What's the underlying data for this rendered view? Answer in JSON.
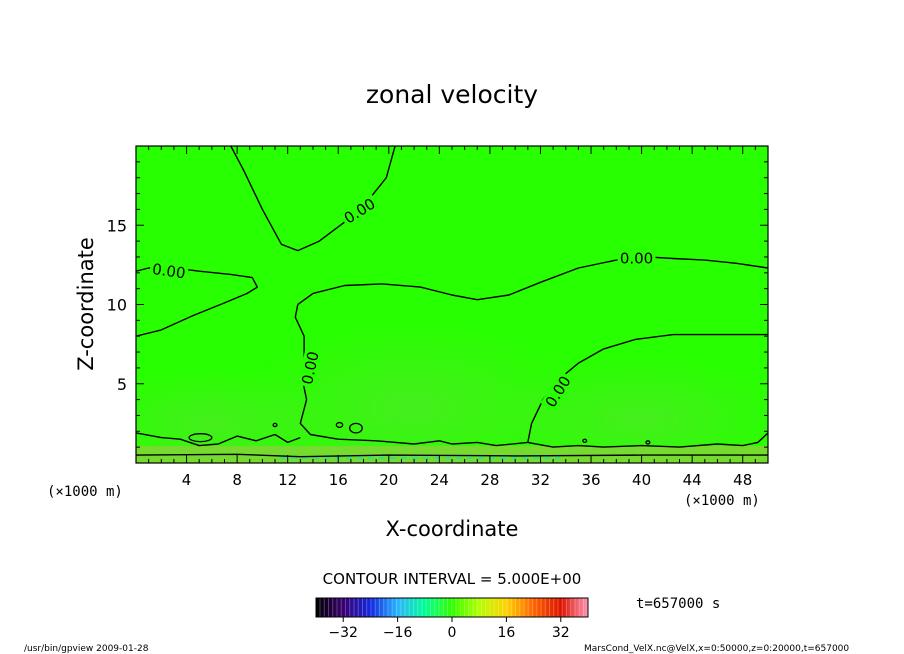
{
  "chart_data": {
    "type": "heatmap",
    "title": "zonal velocity",
    "xlabel": "X-coordinate",
    "ylabel": "Z-coordinate",
    "x_unit": "(×1000 m)",
    "y_unit": "(×1000 m)",
    "xlim": [
      0,
      50
    ],
    "ylim": [
      0,
      20
    ],
    "xticks": [
      4,
      8,
      12,
      16,
      20,
      24,
      28,
      32,
      36,
      40,
      44,
      48
    ],
    "yticks": [
      5,
      10,
      15
    ],
    "contour_interval_text": "CONTOUR INTERVAL = 5.000E+00",
    "time_text": "t=657000 s",
    "colorbar": {
      "range": [
        -40,
        40
      ],
      "tick_values": [
        -32,
        -16,
        0,
        16,
        32
      ],
      "stops": [
        "#000000",
        "#3a0070",
        "#1428e0",
        "#28b4ff",
        "#00ff96",
        "#32ff00",
        "#b4ff00",
        "#ffd200",
        "#ff6400",
        "#dc1400",
        "#ff96b4"
      ]
    },
    "field_colors": {
      "main": "#28ff00",
      "lower_glow": "#50e828",
      "surface_band": "#8cd03c",
      "surface_line": "#28e0a0"
    },
    "contour_labels": [
      "0.00",
      "0.00",
      "0.00",
      "0.00",
      "0.00"
    ],
    "zero_contours": [
      {
        "name": "upper-left-dome",
        "points": [
          [
            7.5,
            20
          ],
          [
            8.5,
            18.5
          ],
          [
            10,
            16
          ],
          [
            11.5,
            13.8
          ],
          [
            12.8,
            13.4
          ],
          [
            14.5,
            14
          ],
          [
            16.5,
            15.2
          ],
          [
            18.5,
            16.7
          ],
          [
            19.8,
            18
          ],
          [
            20.5,
            20
          ]
        ]
      },
      {
        "name": "left-shelf",
        "points": [
          [
            0,
            8
          ],
          [
            2,
            8.4
          ],
          [
            4.5,
            9.3
          ],
          [
            7,
            10.1
          ],
          [
            8.8,
            10.7
          ],
          [
            9.6,
            11.1
          ],
          [
            9.2,
            11.7
          ],
          [
            7.5,
            11.9
          ],
          [
            5,
            12.1
          ],
          [
            3,
            12.3
          ],
          [
            1,
            12.3
          ],
          [
            0,
            12.1
          ]
        ]
      },
      {
        "name": "central-lobe",
        "points": [
          [
            12.8,
            10
          ],
          [
            14,
            10.7
          ],
          [
            16.5,
            11.2
          ],
          [
            19.5,
            11.3
          ],
          [
            22.5,
            11.1
          ],
          [
            25,
            10.6
          ],
          [
            27,
            10.3
          ],
          [
            29.5,
            10.6
          ],
          [
            32,
            11.4
          ],
          [
            35,
            12.3
          ],
          [
            38,
            12.8
          ],
          [
            40.5,
            13
          ],
          [
            42.5,
            12.9
          ],
          [
            45,
            12.8
          ],
          [
            47.5,
            12.6
          ],
          [
            50,
            12.3
          ]
        ]
      },
      {
        "name": "central-left-edge",
        "points": [
          [
            12.8,
            10
          ],
          [
            12.6,
            9.2
          ],
          [
            13.3,
            8
          ],
          [
            13.3,
            6.5
          ],
          [
            13.1,
            5.5
          ],
          [
            13.5,
            4
          ],
          [
            13,
            2.5
          ],
          [
            13.8,
            1.8
          ],
          [
            16,
            1.5
          ],
          [
            19,
            1.4
          ],
          [
            22,
            1.2
          ],
          [
            24,
            1.4
          ],
          [
            25,
            1.2
          ],
          [
            27,
            1.3
          ],
          [
            28.5,
            1.1
          ],
          [
            31,
            1.3
          ]
        ]
      },
      {
        "name": "right-curve",
        "points": [
          [
            31,
            1.3
          ],
          [
            31.3,
            2.5
          ],
          [
            32.2,
            4
          ],
          [
            33.5,
            5.3
          ],
          [
            35,
            6.3
          ],
          [
            37,
            7.2
          ],
          [
            39.5,
            7.8
          ],
          [
            42.5,
            8.1
          ],
          [
            46,
            8.1
          ],
          [
            50,
            8.1
          ]
        ]
      },
      {
        "name": "left-surface",
        "points": [
          [
            0,
            1.9
          ],
          [
            2,
            1.6
          ],
          [
            3.5,
            1.5
          ],
          [
            5,
            1.1
          ],
          [
            6.5,
            1.2
          ],
          [
            8,
            1.7
          ],
          [
            9.5,
            1.4
          ],
          [
            11,
            1.8
          ],
          [
            12,
            1.3
          ],
          [
            13,
            1.6
          ]
        ]
      },
      {
        "name": "right-surface",
        "points": [
          [
            31,
            1.3
          ],
          [
            33,
            1.0
          ],
          [
            35,
            1.1
          ],
          [
            37,
            1.0
          ],
          [
            40,
            1.1
          ],
          [
            43,
            1.0
          ],
          [
            46,
            1.2
          ],
          [
            48,
            1.1
          ],
          [
            49.2,
            1.3
          ],
          [
            50,
            1.9
          ]
        ]
      },
      {
        "name": "bottom-line",
        "points": [
          [
            0,
            0.5
          ],
          [
            8,
            0.55
          ],
          [
            13,
            0.4
          ],
          [
            20,
            0.5
          ],
          [
            30,
            0.45
          ],
          [
            40,
            0.5
          ],
          [
            50,
            0.5
          ]
        ]
      }
    ],
    "small_loops": [
      {
        "x": 5.1,
        "y": 1.6,
        "rx": 0.9,
        "ry": 0.25
      },
      {
        "x": 17.4,
        "y": 2.2,
        "rx": 0.5,
        "ry": 0.3
      },
      {
        "x": 16.1,
        "y": 2.4,
        "rx": 0.25,
        "ry": 0.15
      },
      {
        "x": 11.0,
        "y": 2.4,
        "rx": 0.15,
        "ry": 0.1
      },
      {
        "x": 35.5,
        "y": 1.4,
        "rx": 0.15,
        "ry": 0.1
      },
      {
        "x": 40.5,
        "y": 1.3,
        "rx": 0.15,
        "ry": 0.1
      }
    ]
  },
  "footer": {
    "left": "/usr/bin/gpview  2009-01-28",
    "right": "MarsCond_VelX.nc@VelX,x=0:50000,z=0:20000,t=657000"
  }
}
